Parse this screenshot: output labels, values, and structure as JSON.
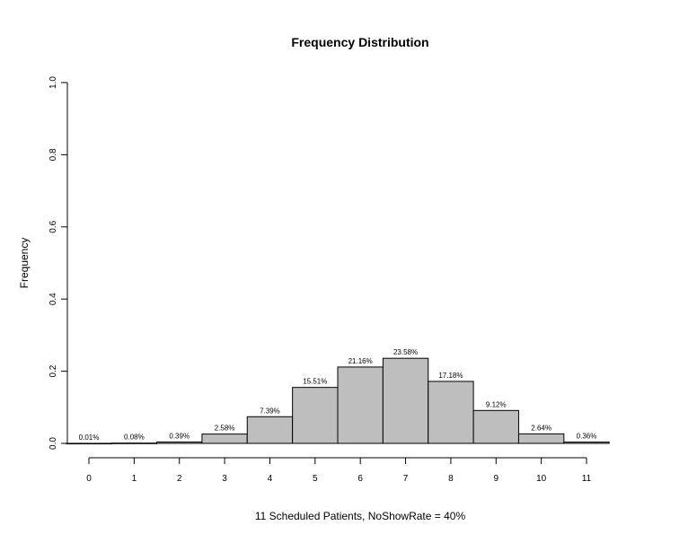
{
  "chart_data": {
    "type": "bar",
    "title": "Frequency Distribution",
    "xlabel": "11 Scheduled Patients,  NoShowRate = 40%",
    "ylabel": "Frequency",
    "categories": [
      "0",
      "1",
      "2",
      "3",
      "4",
      "5",
      "6",
      "7",
      "8",
      "9",
      "10",
      "11"
    ],
    "values": [
      0.0001,
      0.0008,
      0.0039,
      0.0258,
      0.0739,
      0.1551,
      0.2116,
      0.2358,
      0.1718,
      0.0912,
      0.0264,
      0.0036
    ],
    "data_labels": [
      "0.01%",
      "0.08%",
      "0.39%",
      "2.58%",
      "7.39%",
      "15.51%",
      "21.16%",
      "23.58%",
      "17.18%",
      "9.12%",
      "2.64%",
      "0.36%"
    ],
    "yticks": [
      "0.0",
      "0.2",
      "0.4",
      "0.6",
      "0.8",
      "1.0"
    ],
    "ylim": [
      0,
      1
    ],
    "grid": false,
    "bar_color": "#bebebe",
    "edge_color": "#000000"
  }
}
